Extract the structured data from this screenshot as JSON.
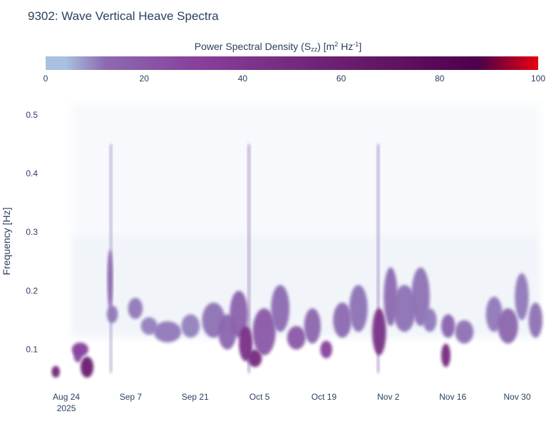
{
  "title": "9302: Wave Vertical Heave Spectra",
  "colorbar": {
    "title_main": "Power Spectral Density (S",
    "title_sub": "zz",
    "title_mid": ") [m",
    "title_sup1": "2",
    "title_hz": " Hz",
    "title_sup2": "-1",
    "title_end": "]",
    "ticks": [
      "0",
      "20",
      "40",
      "60",
      "80",
      "100"
    ],
    "range": [
      0,
      100
    ],
    "colors": [
      "#a9c1e0",
      "#8c6bb1",
      "#88419d",
      "#6a1f6f",
      "#4d004b",
      "#e8000f"
    ]
  },
  "chart_data": {
    "type": "heatmap",
    "title": "9302: Wave Vertical Heave Spectra",
    "ylabel": "Frequency [Hz]",
    "yticks": [
      "0.1",
      "0.2",
      "0.3",
      "0.4",
      "0.5"
    ],
    "ylim": [
      0.035,
      0.54
    ],
    "xlabels": [
      {
        "label": "Aug 24",
        "sub": "2025",
        "day": 0
      },
      {
        "label": "Sep 7",
        "sub": "",
        "day": 14
      },
      {
        "label": "Sep 21",
        "sub": "",
        "day": 28
      },
      {
        "label": "Oct 5",
        "sub": "",
        "day": 42
      },
      {
        "label": "Oct 19",
        "sub": "",
        "day": 56
      },
      {
        "label": "Nov 2",
        "sub": "",
        "day": 70
      },
      {
        "label": "Nov 16",
        "sub": "",
        "day": 84
      },
      {
        "label": "Nov 30",
        "sub": "",
        "day": 98
      }
    ],
    "xlim": [
      -4.5,
      103.5
    ],
    "blobs": [
      {
        "day": 3.0,
        "f": 0.1,
        "dd": 1.8,
        "df": 0.012,
        "psd": 30
      },
      {
        "day": -2.3,
        "f": 0.062,
        "dd": 0.9,
        "df": 0.01,
        "psd": 55
      },
      {
        "day": 4.5,
        "f": 0.07,
        "dd": 1.4,
        "df": 0.018,
        "psd": 60
      },
      {
        "day": 2.5,
        "f": 0.09,
        "dd": 0.9,
        "df": 0.012,
        "psd": 28
      },
      {
        "day": 9.5,
        "f": 0.22,
        "dd": 0.6,
        "df": 0.05,
        "psd": 14
      },
      {
        "day": 10.0,
        "f": 0.16,
        "dd": 1.2,
        "df": 0.015,
        "psd": 10
      },
      {
        "day": 15.0,
        "f": 0.17,
        "dd": 1.6,
        "df": 0.018,
        "psd": 10
      },
      {
        "day": 18.0,
        "f": 0.14,
        "dd": 1.8,
        "df": 0.015,
        "psd": 9
      },
      {
        "day": 22.0,
        "f": 0.13,
        "dd": 3.0,
        "df": 0.018,
        "psd": 10
      },
      {
        "day": 27.0,
        "f": 0.14,
        "dd": 2.0,
        "df": 0.02,
        "psd": 9
      },
      {
        "day": 32.0,
        "f": 0.15,
        "dd": 2.5,
        "df": 0.03,
        "psd": 11
      },
      {
        "day": 35.0,
        "f": 0.13,
        "dd": 2.0,
        "df": 0.03,
        "psd": 14
      },
      {
        "day": 37.5,
        "f": 0.16,
        "dd": 2.0,
        "df": 0.04,
        "psd": 16
      },
      {
        "day": 39.0,
        "f": 0.11,
        "dd": 1.5,
        "df": 0.03,
        "psd": 45
      },
      {
        "day": 41.0,
        "f": 0.085,
        "dd": 1.5,
        "df": 0.015,
        "psd": 50
      },
      {
        "day": 43.0,
        "f": 0.13,
        "dd": 2.5,
        "df": 0.04,
        "psd": 20
      },
      {
        "day": 46.5,
        "f": 0.17,
        "dd": 2.0,
        "df": 0.04,
        "psd": 12
      },
      {
        "day": 50.0,
        "f": 0.12,
        "dd": 2.0,
        "df": 0.02,
        "psd": 20
      },
      {
        "day": 53.5,
        "f": 0.14,
        "dd": 1.8,
        "df": 0.03,
        "psd": 14
      },
      {
        "day": 56.5,
        "f": 0.1,
        "dd": 1.3,
        "df": 0.015,
        "psd": 30
      },
      {
        "day": 60.0,
        "f": 0.15,
        "dd": 2.0,
        "df": 0.03,
        "psd": 12
      },
      {
        "day": 63.5,
        "f": 0.17,
        "dd": 2.0,
        "df": 0.04,
        "psd": 11
      },
      {
        "day": 68.0,
        "f": 0.13,
        "dd": 1.5,
        "df": 0.04,
        "psd": 45
      },
      {
        "day": 70.5,
        "f": 0.19,
        "dd": 1.5,
        "df": 0.05,
        "psd": 12
      },
      {
        "day": 73.5,
        "f": 0.17,
        "dd": 2.5,
        "df": 0.04,
        "psd": 11
      },
      {
        "day": 77.0,
        "f": 0.19,
        "dd": 2.0,
        "df": 0.05,
        "psd": 11
      },
      {
        "day": 79.0,
        "f": 0.15,
        "dd": 1.5,
        "df": 0.02,
        "psd": 10
      },
      {
        "day": 82.5,
        "f": 0.09,
        "dd": 1.0,
        "df": 0.02,
        "psd": 50
      },
      {
        "day": 83.0,
        "f": 0.14,
        "dd": 1.5,
        "df": 0.02,
        "psd": 15
      },
      {
        "day": 86.5,
        "f": 0.13,
        "dd": 2.0,
        "df": 0.02,
        "psd": 11
      },
      {
        "day": 93.0,
        "f": 0.16,
        "dd": 1.8,
        "df": 0.03,
        "psd": 10
      },
      {
        "day": 96.0,
        "f": 0.14,
        "dd": 2.2,
        "df": 0.03,
        "psd": 14
      },
      {
        "day": 99.0,
        "f": 0.19,
        "dd": 1.5,
        "df": 0.04,
        "psd": 10
      },
      {
        "day": 102.0,
        "f": 0.15,
        "dd": 1.5,
        "df": 0.03,
        "psd": 11
      }
    ],
    "streaks": [
      {
        "day": 9.7,
        "psd": 9
      },
      {
        "day": 39.7,
        "psd": 12
      },
      {
        "day": 67.8,
        "psd": 12
      }
    ]
  }
}
